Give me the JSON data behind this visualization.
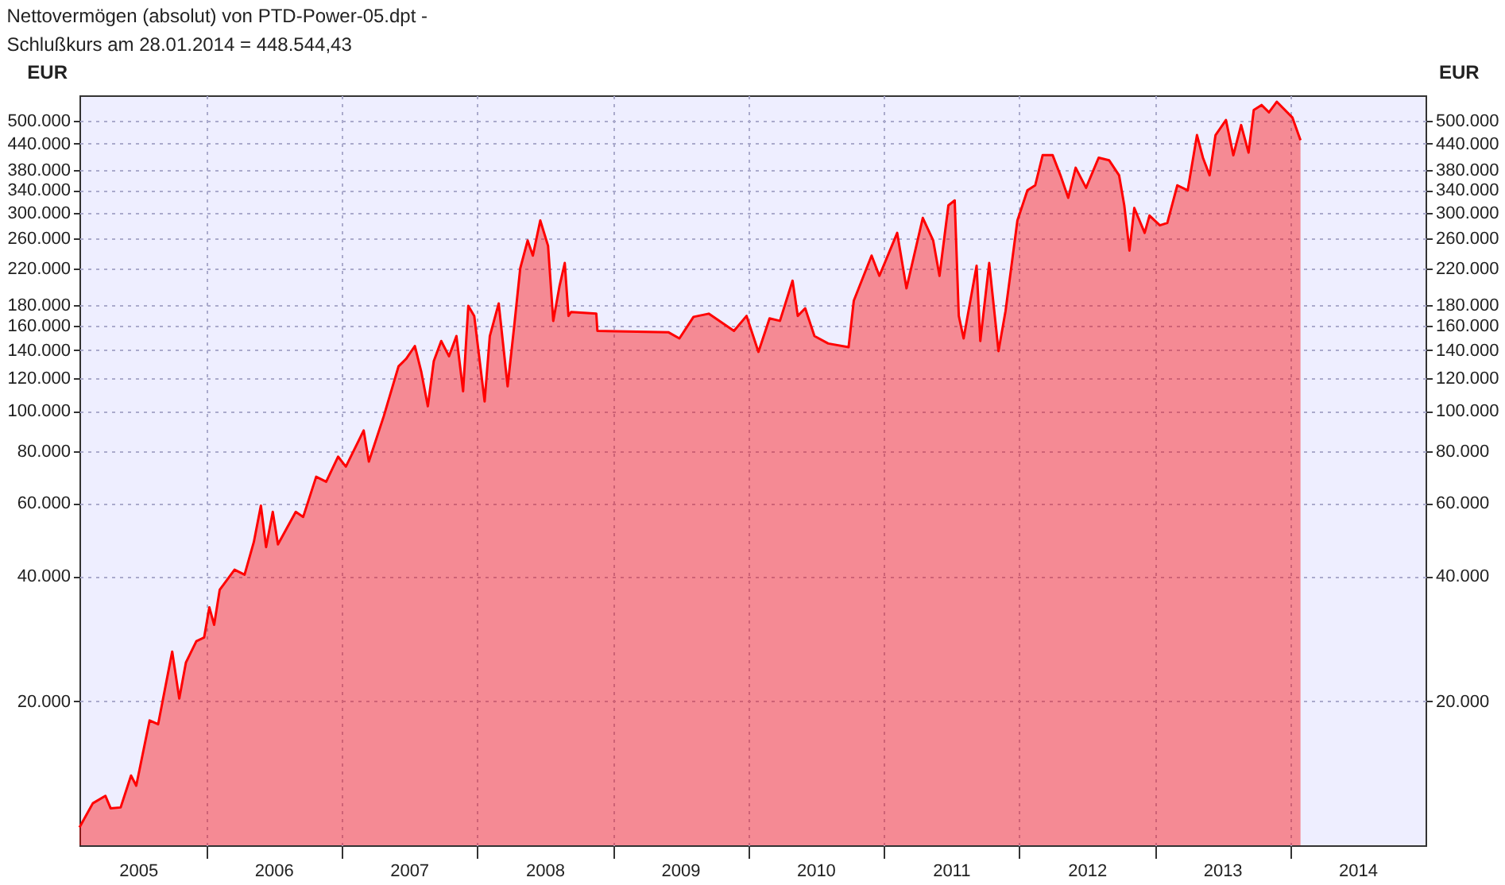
{
  "chart_data": {
    "type": "area",
    "title": "Nettovermögen (absolut) von PTD-Power-05.dpt -",
    "subtitle": "Schlußkurs am 28.01.2014 = 448.544,43",
    "ylabel": "EUR",
    "log": true,
    "grid": true,
    "x": [
      "2005-01-24",
      "2005-03-01",
      "2005-04-04",
      "2005-04-18",
      "2005-05-15",
      "2005-06-12",
      "2005-06-26",
      "2005-08-01",
      "2005-08-24",
      "2005-10-01",
      "2005-10-20",
      "2005-11-07",
      "2005-12-05",
      "2005-12-26",
      "2006-01-09",
      "2006-01-22",
      "2006-02-06",
      "2006-03-18",
      "2006-04-14",
      "2006-05-09",
      "2006-05-28",
      "2006-06-11",
      "2006-06-29",
      "2006-07-13",
      "2006-08-30",
      "2006-09-19",
      "2006-10-24",
      "2006-11-20",
      "2006-12-22",
      "2007-01-12",
      "2007-03-01",
      "2007-03-15",
      "2007-04-24",
      "2007-06-03",
      "2007-06-24",
      "2007-07-17",
      "2007-08-03",
      "2007-08-21",
      "2007-09-06",
      "2007-09-26",
      "2007-10-17",
      "2007-11-06",
      "2007-11-24",
      "2007-12-08",
      "2007-12-24",
      "2008-01-21",
      "2008-02-04",
      "2008-02-28",
      "2008-03-23",
      "2008-04-09",
      "2008-04-26",
      "2008-05-16",
      "2008-05-30",
      "2008-06-19",
      "2008-07-10",
      "2008-07-24",
      "2008-08-10",
      "2008-08-24",
      "2008-09-03",
      "2008-09-10",
      "2008-11-17",
      "2008-11-20",
      "2009-05-30",
      "2009-06-29",
      "2009-08-06",
      "2009-09-16",
      "2009-11-23",
      "2009-12-27",
      "2010-01-28",
      "2010-02-27",
      "2010-03-27",
      "2010-04-30",
      "2010-05-14",
      "2010-06-03",
      "2010-06-28",
      "2010-08-04",
      "2010-09-28",
      "2010-10-12",
      "2010-11-29",
      "2010-12-20",
      "2011-02-06",
      "2011-03-03",
      "2011-04-16",
      "2011-05-14",
      "2011-05-31",
      "2011-06-24",
      "2011-07-11",
      "2011-07-22",
      "2011-08-04",
      "2011-09-08",
      "2011-09-18",
      "2011-10-12",
      "2011-11-06",
      "2011-11-25",
      "2011-12-27",
      "2012-01-23",
      "2012-02-13",
      "2012-03-04",
      "2012-03-31",
      "2012-04-21",
      "2012-05-12",
      "2012-06-01",
      "2012-06-29",
      "2012-08-02",
      "2012-08-30",
      "2012-09-26",
      "2012-10-10",
      "2012-10-24",
      "2012-11-06",
      "2012-12-04",
      "2012-12-17",
      "2013-01-14",
      "2013-02-03",
      "2013-03-02",
      "2013-03-30",
      "2013-04-24",
      "2013-05-10",
      "2013-05-28",
      "2013-06-13",
      "2013-07-11",
      "2013-07-31",
      "2013-08-21",
      "2013-09-10",
      "2013-09-24",
      "2013-10-15",
      "2013-11-04",
      "2013-11-25",
      "2014-01-06",
      "2014-01-28"
    ],
    "series": [
      {
        "color": "#ff0000",
        "values": [
          9940,
          11360,
          11840,
          11050,
          11100,
          13250,
          12520,
          17980,
          17600,
          26340,
          20300,
          24800,
          27900,
          28480,
          33660,
          30550,
          37100,
          41460,
          40340,
          48360,
          59120,
          47000,
          57140,
          47700,
          57140,
          55560,
          69400,
          67540,
          77600,
          73400,
          89740,
          75500,
          97000,
          128000,
          133600,
          143300,
          124600,
          102600,
          131800,
          147300,
          135400,
          151400,
          111500,
          179000,
          169300,
          105400,
          151400,
          181400,
          114600,
          157800,
          220400,
          257200,
          236500,
          287300,
          249800,
          164700,
          200000,
          227000,
          169300,
          173000,
          171400,
          155800,
          154700,
          149400,
          168400,
          171400,
          155800,
          169300,
          138700,
          167000,
          164700,
          205800,
          169300,
          176600,
          151400,
          145300,
          142400,
          184200,
          236500,
          211400,
          268200,
          197300,
          291500,
          257200,
          211400,
          312500,
          321200,
          169300,
          149400,
          223600,
          147300,
          227000,
          139300,
          174000,
          287300,
          339600,
          349200,
          412600,
          412600,
          369200,
          325800,
          384900,
          344400,
          407000,
          401300,
          369200,
          312500,
          243200,
          307900,
          268200,
          295300,
          279700,
          283400,
          349200,
          339600,
          461300,
          407000,
          369200,
          461300,
          501500,
          412600,
          487700,
          418500,
          530000,
          545000,
          523200,
          555000,
          508600,
          448544
        ]
      }
    ],
    "xlim": [
      "2005-01-24",
      "2014-12-31"
    ],
    "xticks": [
      {
        "value": "2005-07-01",
        "label": "2005"
      },
      {
        "value": "2006-01-01",
        "label": null
      },
      {
        "value": "2006-07-01",
        "label": "2006"
      },
      {
        "value": "2007-01-01",
        "label": null
      },
      {
        "value": "2007-07-01",
        "label": "2007"
      },
      {
        "value": "2008-01-01",
        "label": null
      },
      {
        "value": "2008-07-01",
        "label": "2008"
      },
      {
        "value": "2009-01-01",
        "label": null
      },
      {
        "value": "2009-07-01",
        "label": "2009"
      },
      {
        "value": "2010-01-01",
        "label": null
      },
      {
        "value": "2010-07-01",
        "label": "2010"
      },
      {
        "value": "2011-01-01",
        "label": null
      },
      {
        "value": "2011-07-01",
        "label": "2011"
      },
      {
        "value": "2012-01-01",
        "label": null
      },
      {
        "value": "2012-07-01",
        "label": "2012"
      },
      {
        "value": "2013-01-01",
        "label": null
      },
      {
        "value": "2013-07-01",
        "label": "2013"
      },
      {
        "value": "2014-01-01",
        "label": null
      },
      {
        "value": "2014-07-01",
        "label": "2014"
      }
    ],
    "ylim": [
      9000,
      575000
    ],
    "yticks": [
      {
        "value": 20000,
        "label": "20.000"
      },
      {
        "value": 40000,
        "label": "40.000"
      },
      {
        "value": 60000,
        "label": "60.000"
      },
      {
        "value": 80000,
        "label": "80.000"
      },
      {
        "value": 100000,
        "label": "100.000"
      },
      {
        "value": 120000,
        "label": "120.000"
      },
      {
        "value": 140000,
        "label": "140.000"
      },
      {
        "value": 160000,
        "label": "160.000"
      },
      {
        "value": 180000,
        "label": "180.000"
      },
      {
        "value": 220000,
        "label": "220.000"
      },
      {
        "value": 260000,
        "label": "260.000"
      },
      {
        "value": 300000,
        "label": "300.000"
      },
      {
        "value": 340000,
        "label": "340.000"
      },
      {
        "value": 380000,
        "label": "380.000"
      },
      {
        "value": 440000,
        "label": "440.000"
      },
      {
        "value": 500000,
        "label": "500.000"
      }
    ]
  }
}
